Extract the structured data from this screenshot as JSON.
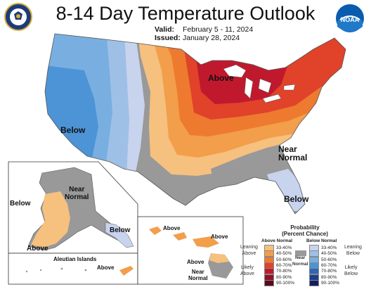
{
  "title": "8-14 Day Temperature Outlook",
  "valid_label": "Valid:",
  "valid_value": "February 5 - 11, 2024",
  "issued_label": "Issued:",
  "issued_value": "January 28, 2024",
  "labels": {
    "above_conus": "Above",
    "below_west": "Below",
    "near_normal_se": "Near\nNormal",
    "below_florida": "Below",
    "below_alaska_west": "Below",
    "near_normal_alaska": "Near\nNormal",
    "above_alaska": "Above",
    "below_alaska_se": "Below",
    "aleutian_title": "Aleutian Islands",
    "above_aleutian": "Above",
    "above_hawaii_1": "Above",
    "above_hawaii_2": "Above",
    "above_hawaii_3": "Above",
    "near_normal_hawaii": "Near\nNormal"
  },
  "legend": {
    "title": "Probability\n(Percent Chance)",
    "above_header": "Above Normal",
    "below_header": "Below Normal",
    "near_normal": "Near\nNormal",
    "leaning_above": "Leaning\nAbove",
    "likely_above": "Likely\nAbove",
    "leaning_below": "Leaning\nBelow",
    "likely_below": "Likely\nBelow",
    "above_ranges": [
      "33-40%",
      "40-50%",
      "50-60%",
      "60-70%",
      "70-80%",
      "80-90%",
      "90-100%"
    ],
    "above_colors": [
      "#f6c07e",
      "#f29e4b",
      "#ee7a30",
      "#e0422a",
      "#c0192e",
      "#8f1025",
      "#5b0a1b"
    ],
    "below_ranges": [
      "33-40%",
      "40-50%",
      "50-60%",
      "60-70%",
      "70-80%",
      "80-90%",
      "90-100%"
    ],
    "below_colors": [
      "#c8d3ee",
      "#9fc0e6",
      "#79afe0",
      "#4c94d6",
      "#2b68b6",
      "#1b3f8c",
      "#131e5e"
    ],
    "near_color": "#999999"
  },
  "logos": {
    "left": "commerce-seal-icon",
    "right": "noaa-logo-icon",
    "right_text": "NOAA"
  }
}
